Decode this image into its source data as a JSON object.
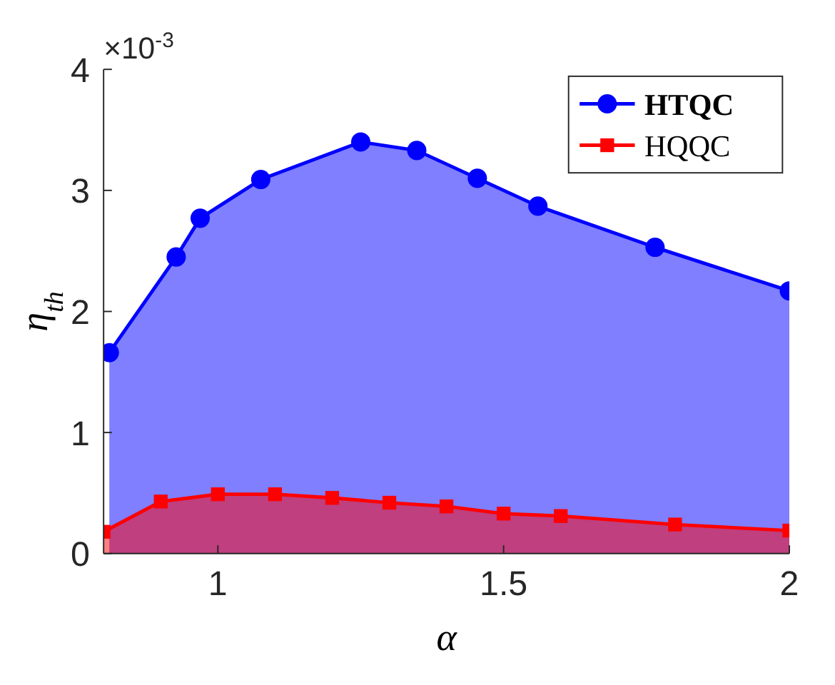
{
  "chart_data": {
    "type": "area",
    "xlabel": "α",
    "ylabel": "η$_{th}$",
    "annotations": [
      "×10$^{-3}$"
    ],
    "xlim": [
      0.8,
      2
    ],
    "xticks": [
      1,
      1.5,
      2
    ],
    "ylim": [
      0,
      4
    ],
    "yticks": [
      0,
      1,
      2,
      3,
      4
    ],
    "legend": "top right",
    "line_style": "solid",
    "series": [
      {
        "name": "HTQC",
        "color": "#0000ff",
        "marker": "circle",
        "x": [
          0.81,
          0.927,
          0.969,
          1.075,
          1.25,
          1.348,
          1.454,
          1.56,
          1.765,
          2.0
        ],
        "values": [
          1.66,
          2.45,
          2.77,
          3.09,
          3.4,
          3.33,
          3.1,
          2.87,
          2.53,
          2.17
        ]
      },
      {
        "name": "HQQC",
        "color": "#ff0000",
        "marker": "square",
        "x": [
          0.8,
          0.9,
          1.0,
          1.1,
          1.2,
          1.3,
          1.4,
          1.5,
          1.6,
          1.8,
          2.0
        ],
        "values": [
          0.18,
          0.43,
          0.49,
          0.49,
          0.46,
          0.42,
          0.39,
          0.33,
          0.31,
          0.24,
          0.19
        ]
      }
    ]
  }
}
